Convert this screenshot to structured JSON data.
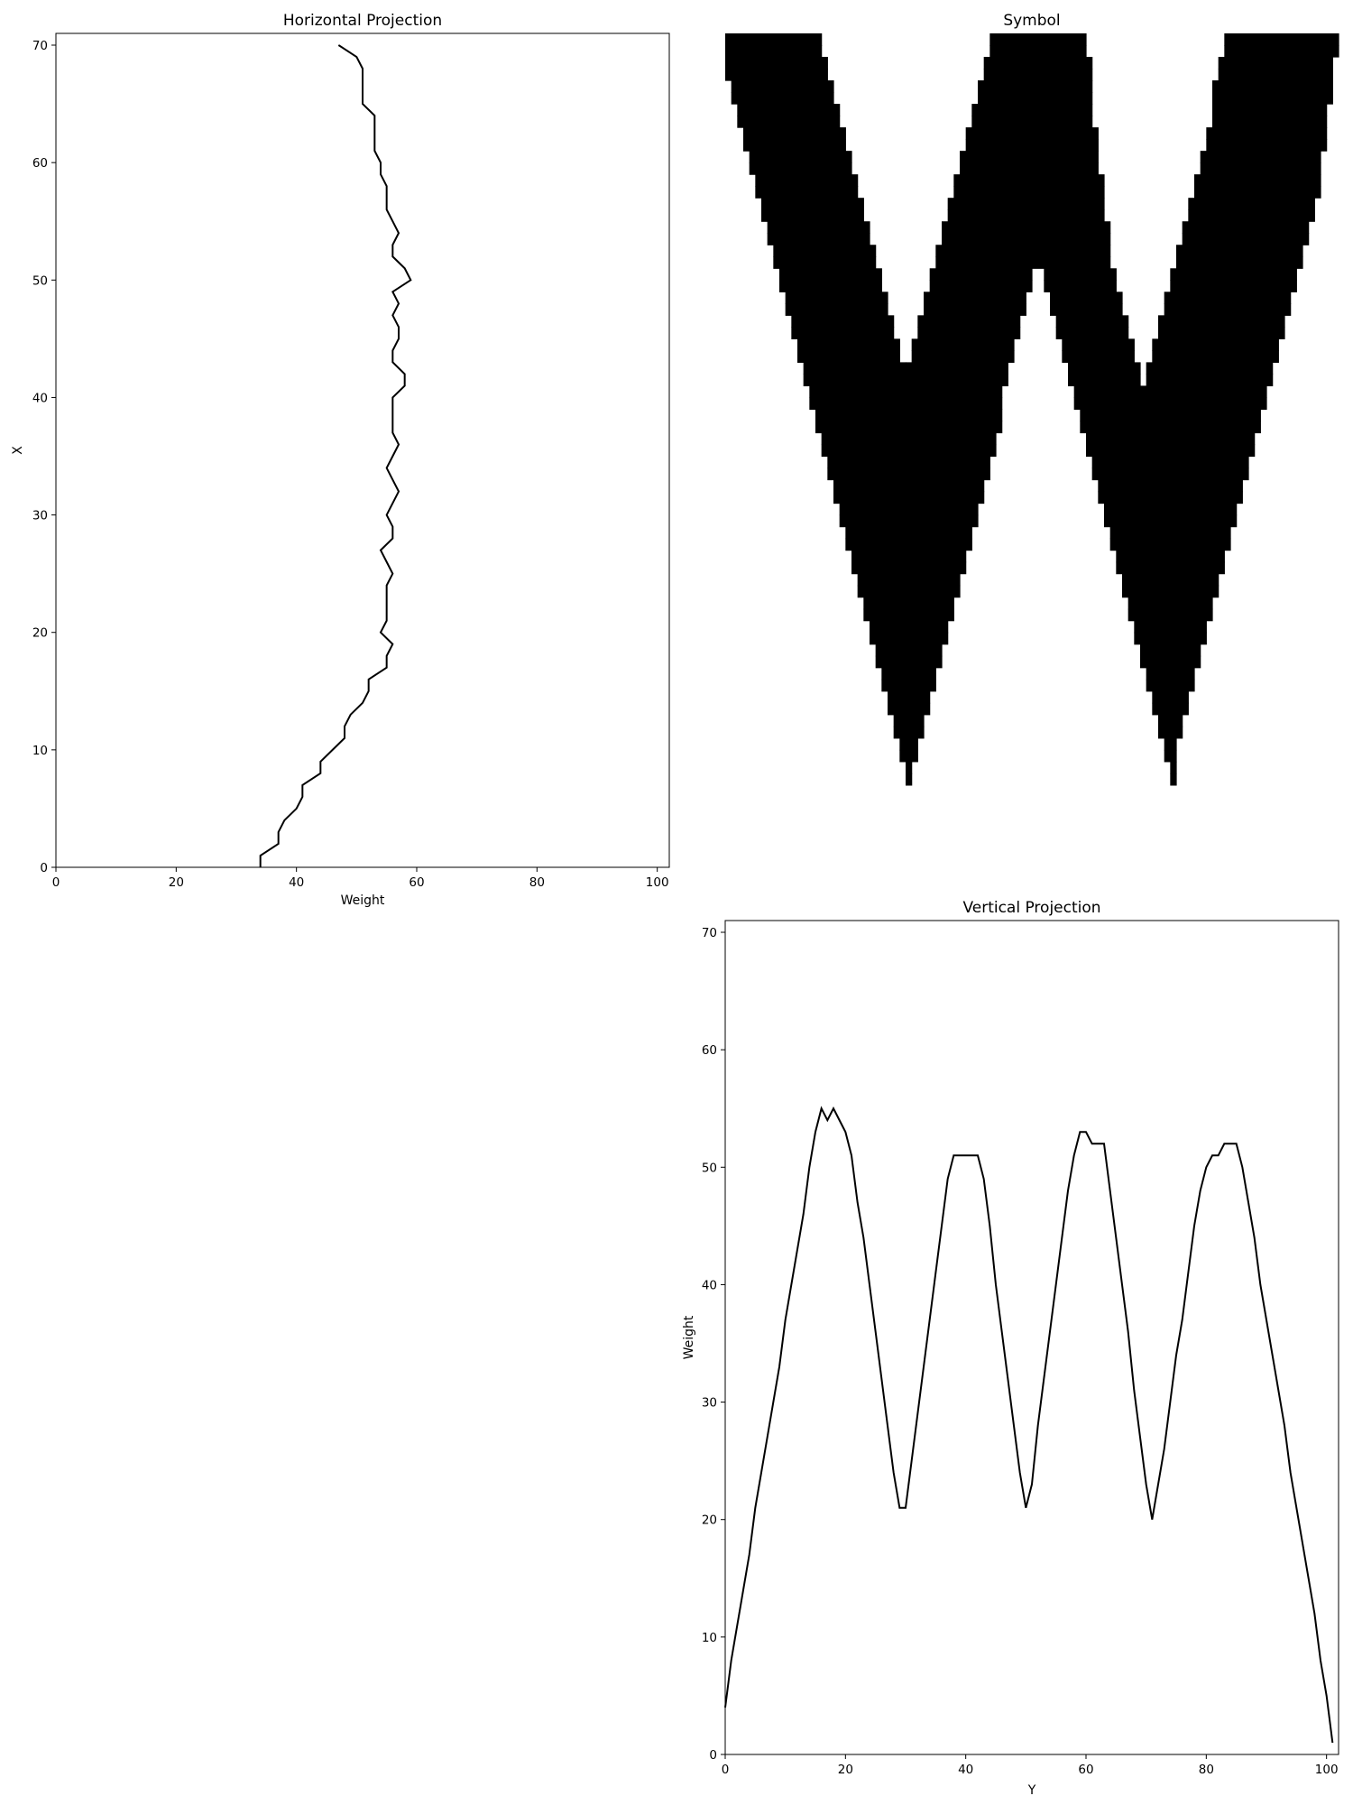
{
  "chart_data": [
    {
      "type": "line",
      "title": "Horizontal Projection",
      "xlabel": "Weight",
      "ylabel": "X",
      "xlim": [
        0,
        102
      ],
      "ylim": [
        0,
        71
      ],
      "xticks": [
        0,
        20,
        40,
        60,
        80,
        100
      ],
      "yticks": [
        0,
        10,
        20,
        30,
        40,
        50,
        60,
        70
      ],
      "grid": false,
      "color": "#000000",
      "x": [
        34,
        34,
        37,
        37,
        38,
        40,
        41,
        41,
        44,
        44,
        46,
        48,
        48,
        49,
        51,
        52,
        52,
        55,
        55,
        56,
        54,
        55,
        55,
        55,
        55,
        56,
        55,
        54,
        56,
        56,
        55,
        56,
        57,
        56,
        55,
        56,
        57,
        56,
        56,
        56,
        56,
        58,
        58,
        56,
        56,
        57,
        57,
        56,
        57,
        56,
        59,
        58,
        56,
        56,
        57,
        56,
        55,
        55,
        55,
        54,
        54,
        53,
        53,
        53,
        53,
        51,
        51,
        51,
        51,
        50,
        47
      ],
      "y": [
        0,
        1,
        2,
        3,
        4,
        5,
        6,
        7,
        8,
        9,
        10,
        11,
        12,
        13,
        14,
        15,
        16,
        17,
        18,
        19,
        20,
        21,
        22,
        23,
        24,
        25,
        26,
        27,
        28,
        29,
        30,
        31,
        32,
        33,
        34,
        35,
        36,
        37,
        38,
        39,
        40,
        41,
        42,
        43,
        44,
        45,
        46,
        47,
        48,
        49,
        50,
        51,
        52,
        53,
        54,
        55,
        56,
        57,
        58,
        59,
        60,
        61,
        62,
        63,
        64,
        65,
        66,
        67,
        68,
        69,
        70
      ]
    },
    {
      "type": "heatmap",
      "title": "Symbol",
      "rows": 71,
      "cols": 102,
      "cmap": [
        "#ffffff",
        "#000000"
      ],
      "axes_visible": false,
      "rows_top_to_bottom_runs": [
        [
          [
            0,
            16
          ],
          [
            44,
            60
          ],
          [
            83,
            102
          ]
        ],
        [
          [
            0,
            16
          ],
          [
            44,
            60
          ],
          [
            83,
            102
          ]
        ],
        [
          [
            0,
            17
          ],
          [
            43,
            61
          ],
          [
            82,
            101
          ]
        ],
        [
          [
            0,
            17
          ],
          [
            43,
            61
          ],
          [
            82,
            101
          ]
        ],
        [
          [
            1,
            18
          ],
          [
            42,
            61
          ],
          [
            81,
            101
          ]
        ],
        [
          [
            1,
            18
          ],
          [
            42,
            61
          ],
          [
            81,
            101
          ]
        ],
        [
          [
            2,
            19
          ],
          [
            41,
            61
          ],
          [
            81,
            100
          ]
        ],
        [
          [
            2,
            19
          ],
          [
            41,
            61
          ],
          [
            81,
            100
          ]
        ],
        [
          [
            3,
            20
          ],
          [
            40,
            62
          ],
          [
            80,
            100
          ]
        ],
        [
          [
            3,
            20
          ],
          [
            40,
            62
          ],
          [
            80,
            100
          ]
        ],
        [
          [
            4,
            21
          ],
          [
            39,
            62
          ],
          [
            79,
            99
          ]
        ],
        [
          [
            4,
            21
          ],
          [
            39,
            62
          ],
          [
            79,
            99
          ]
        ],
        [
          [
            5,
            22
          ],
          [
            38,
            63
          ],
          [
            78,
            99
          ]
        ],
        [
          [
            5,
            22
          ],
          [
            38,
            63
          ],
          [
            78,
            99
          ]
        ],
        [
          [
            6,
            23
          ],
          [
            37,
            63
          ],
          [
            77,
            98
          ]
        ],
        [
          [
            6,
            23
          ],
          [
            37,
            63
          ],
          [
            77,
            98
          ]
        ],
        [
          [
            7,
            24
          ],
          [
            36,
            64
          ],
          [
            76,
            97
          ]
        ],
        [
          [
            7,
            24
          ],
          [
            36,
            64
          ],
          [
            76,
            97
          ]
        ],
        [
          [
            8,
            25
          ],
          [
            35,
            64
          ],
          [
            75,
            96
          ]
        ],
        [
          [
            8,
            25
          ],
          [
            35,
            64
          ],
          [
            75,
            96
          ]
        ],
        [
          [
            9,
            26
          ],
          [
            34,
            51
          ],
          [
            53,
            65
          ],
          [
            74,
            95
          ]
        ],
        [
          [
            9,
            26
          ],
          [
            34,
            51
          ],
          [
            53,
            65
          ],
          [
            74,
            95
          ]
        ],
        [
          [
            10,
            27
          ],
          [
            33,
            50
          ],
          [
            54,
            66
          ],
          [
            73,
            94
          ]
        ],
        [
          [
            10,
            27
          ],
          [
            33,
            50
          ],
          [
            54,
            66
          ],
          [
            73,
            94
          ]
        ],
        [
          [
            11,
            28
          ],
          [
            32,
            49
          ],
          [
            55,
            67
          ],
          [
            72,
            93
          ]
        ],
        [
          [
            11,
            28
          ],
          [
            32,
            49
          ],
          [
            55,
            67
          ],
          [
            72,
            93
          ]
        ],
        [
          [
            12,
            29
          ],
          [
            31,
            48
          ],
          [
            56,
            68
          ],
          [
            71,
            92
          ]
        ],
        [
          [
            12,
            29
          ],
          [
            31,
            48
          ],
          [
            56,
            68
          ],
          [
            71,
            92
          ]
        ],
        [
          [
            13,
            30
          ],
          [
            30,
            47
          ],
          [
            57,
            69
          ],
          [
            70,
            91
          ]
        ],
        [
          [
            13,
            30
          ],
          [
            30,
            47
          ],
          [
            57,
            69
          ],
          [
            70,
            91
          ]
        ],
        [
          [
            14,
            30
          ],
          [
            30,
            46
          ],
          [
            58,
            90
          ]
        ],
        [
          [
            14,
            30
          ],
          [
            30,
            46
          ],
          [
            58,
            90
          ]
        ],
        [
          [
            15,
            31
          ],
          [
            29,
            46
          ],
          [
            59,
            89
          ]
        ],
        [
          [
            15,
            31
          ],
          [
            29,
            46
          ],
          [
            59,
            89
          ]
        ],
        [
          [
            16,
            32
          ],
          [
            28,
            45
          ],
          [
            60,
            88
          ]
        ],
        [
          [
            16,
            32
          ],
          [
            28,
            45
          ],
          [
            60,
            88
          ]
        ],
        [
          [
            17,
            33
          ],
          [
            27,
            44
          ],
          [
            61,
            87
          ]
        ],
        [
          [
            17,
            33
          ],
          [
            27,
            44
          ],
          [
            61,
            87
          ]
        ],
        [
          [
            18,
            34
          ],
          [
            26,
            43
          ],
          [
            62,
            86
          ]
        ],
        [
          [
            18,
            34
          ],
          [
            26,
            43
          ],
          [
            62,
            86
          ]
        ],
        [
          [
            19,
            35
          ],
          [
            25,
            42
          ],
          [
            63,
            85
          ]
        ],
        [
          [
            19,
            35
          ],
          [
            25,
            42
          ],
          [
            63,
            85
          ]
        ],
        [
          [
            20,
            36
          ],
          [
            24,
            41
          ],
          [
            64,
            84
          ]
        ],
        [
          [
            20,
            36
          ],
          [
            24,
            41
          ],
          [
            64,
            84
          ]
        ],
        [
          [
            21,
            37
          ],
          [
            23,
            40
          ],
          [
            65,
            83
          ]
        ],
        [
          [
            21,
            37
          ],
          [
            23,
            40
          ],
          [
            65,
            83
          ]
        ],
        [
          [
            22,
            39
          ],
          [
            66,
            82
          ]
        ],
        [
          [
            22,
            39
          ],
          [
            66,
            82
          ]
        ],
        [
          [
            23,
            38
          ],
          [
            67,
            81
          ]
        ],
        [
          [
            23,
            38
          ],
          [
            67,
            81
          ]
        ],
        [
          [
            24,
            37
          ],
          [
            68,
            80
          ]
        ],
        [
          [
            24,
            37
          ],
          [
            68,
            80
          ]
        ],
        [
          [
            25,
            36
          ],
          [
            69,
            79
          ]
        ],
        [
          [
            25,
            36
          ],
          [
            69,
            79
          ]
        ],
        [
          [
            26,
            35
          ],
          [
            70,
            78
          ]
        ],
        [
          [
            26,
            35
          ],
          [
            70,
            78
          ]
        ],
        [
          [
            27,
            34
          ],
          [
            71,
            77
          ]
        ],
        [
          [
            27,
            34
          ],
          [
            71,
            77
          ]
        ],
        [
          [
            28,
            33
          ],
          [
            72,
            76
          ]
        ],
        [
          [
            28,
            33
          ],
          [
            72,
            76
          ]
        ],
        [
          [
            29,
            32
          ],
          [
            73,
            75
          ]
        ],
        [
          [
            29,
            32
          ],
          [
            73,
            75
          ]
        ],
        [
          [
            30,
            31
          ],
          [
            74,
            75
          ]
        ],
        [
          [
            30,
            31
          ],
          [
            74,
            75
          ]
        ],
        [],
        [],
        [],
        [],
        [],
        [],
        [],
        [],
        [],
        []
      ],
      "row_count_runs_note": "rows listed top (x=70) to bottom (x=0); each run is [start_col, end_col)"
    },
    {
      "type": "line",
      "title": "Vertical Projection",
      "xlabel": "Y",
      "ylabel": "Weight",
      "xlim": [
        0,
        102
      ],
      "ylim": [
        0,
        71
      ],
      "xticks": [
        0,
        20,
        40,
        60,
        80,
        100
      ],
      "yticks": [
        0,
        10,
        20,
        30,
        40,
        50,
        60,
        70
      ],
      "grid": false,
      "color": "#000000",
      "x": [
        0,
        1,
        2,
        3,
        4,
        5,
        6,
        7,
        8,
        9,
        10,
        11,
        12,
        13,
        14,
        15,
        16,
        17,
        18,
        19,
        20,
        21,
        22,
        23,
        24,
        25,
        26,
        27,
        28,
        29,
        30,
        31,
        32,
        33,
        34,
        35,
        36,
        37,
        38,
        39,
        40,
        41,
        42,
        43,
        44,
        45,
        46,
        47,
        48,
        49,
        50,
        51,
        52,
        53,
        54,
        55,
        56,
        57,
        58,
        59,
        60,
        61,
        62,
        63,
        64,
        65,
        66,
        67,
        68,
        69,
        70,
        71,
        72,
        73,
        74,
        75,
        76,
        77,
        78,
        79,
        80,
        81,
        82,
        83,
        84,
        85,
        86,
        87,
        88,
        89,
        90,
        91,
        92,
        93,
        94,
        95,
        96,
        97,
        98,
        99,
        100,
        101
      ],
      "y": [
        4,
        8,
        11,
        14,
        17,
        21,
        24,
        27,
        30,
        33,
        37,
        40,
        43,
        46,
        50,
        53,
        55,
        54,
        55,
        54,
        53,
        51,
        47,
        44,
        40,
        36,
        32,
        28,
        24,
        21,
        21,
        25,
        29,
        33,
        37,
        41,
        45,
        49,
        51,
        51,
        51,
        51,
        51,
        49,
        45,
        40,
        36,
        32,
        28,
        24,
        21,
        23,
        28,
        32,
        36,
        40,
        44,
        48,
        51,
        53,
        53,
        52,
        52,
        52,
        48,
        44,
        40,
        36,
        31,
        27,
        23,
        20,
        23,
        26,
        30,
        34,
        37,
        41,
        45,
        48,
        50,
        51,
        51,
        52,
        52,
        52,
        50,
        47,
        44,
        40,
        37,
        34,
        31,
        28,
        24,
        21,
        18,
        15,
        12,
        8,
        5,
        1
      ]
    }
  ]
}
